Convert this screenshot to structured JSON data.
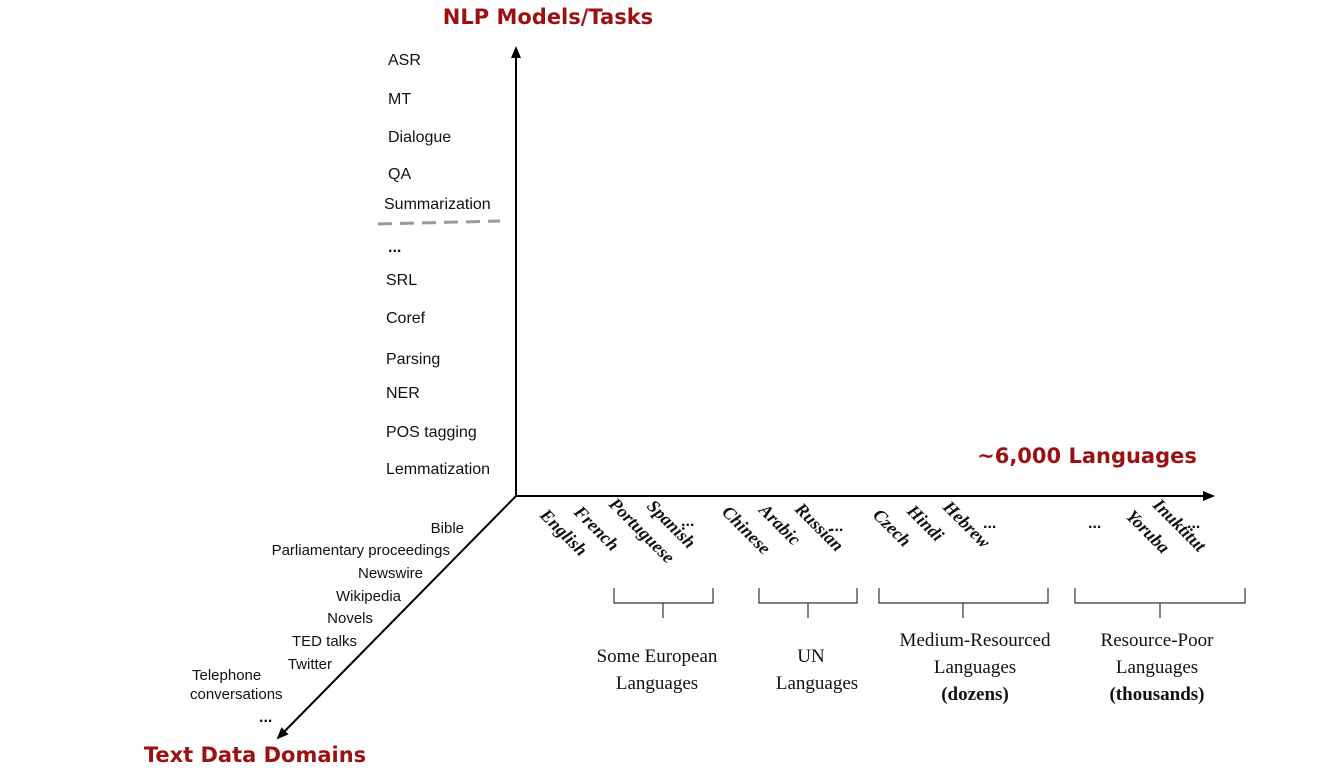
{
  "axes": {
    "vertical_title": "NLP Models/Tasks",
    "horizontal_title": "~6,000 Languages",
    "diagonal_title": "Text Data Domains"
  },
  "tasks": [
    "ASR",
    "MT",
    "Dialogue",
    "QA",
    "Summarization",
    "...",
    "SRL",
    "Coref",
    "Parsing",
    "NER",
    "POS tagging",
    "Lemmatization"
  ],
  "domains": {
    "bible": "Bible",
    "parliament": "Parliamentary proceedings",
    "newswire": "Newswire",
    "wikipedia": "Wikipedia",
    "novels": "Novels",
    "ted": "TED talks",
    "twitter": "Twitter",
    "telephone_1": "Telephone",
    "telephone_2": "conversations",
    "more": "..."
  },
  "languages": {
    "english": "English",
    "french": "French",
    "portuguese": "Portuguese",
    "spanish": "Spanish",
    "chinese": "Chinese",
    "arabic": "Arabic",
    "russian": "Russian",
    "czech": "Czech",
    "hindi": "Hindi",
    "hebrew": "Hebrew",
    "yoruba": "Yoruba",
    "inuktitut": "Inuktitut",
    "ellipsis": "..."
  },
  "groups": {
    "european_1": "Some European",
    "european_2": "Languages",
    "un_1": "UN",
    "un_2": "Languages",
    "medium_1": "Medium-Resourced",
    "medium_2": "Languages",
    "medium_3": "(dozens)",
    "poor_1": "Resource-Poor",
    "poor_2": "Languages",
    "poor_3": "(thousands)"
  },
  "colors": {
    "axis_title": "#9b1111",
    "axis_line": "#000000",
    "separator": "#9a9a9a"
  }
}
